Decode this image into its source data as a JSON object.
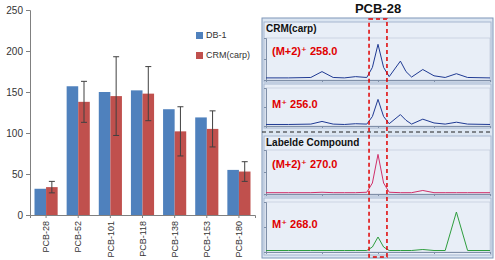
{
  "chart_data": [
    {
      "type": "bar",
      "categories": [
        "PCB-28",
        "PCB-52",
        "PCB-101",
        "PCB-118",
        "PCB-138",
        "PCB-153",
        "PCB-180"
      ],
      "series": [
        {
          "name": "DB-1",
          "color": "#4f81bd",
          "values": [
            32,
            157,
            150,
            152,
            129,
            119,
            55
          ]
        },
        {
          "name": "CRM(carp)",
          "color": "#c0504d",
          "values": [
            34,
            138,
            145,
            148,
            102,
            105,
            53
          ],
          "errors": [
            7,
            25,
            48,
            33,
            30,
            22,
            12
          ]
        }
      ],
      "ylim": [
        0,
        250
      ],
      "yticks": [
        0,
        50,
        100,
        150,
        200,
        250
      ],
      "grid": false,
      "legend": "upper right"
    },
    {
      "type": "line",
      "title": "(M+2)⁺ 258.0",
      "annotations": [
        "PCB-28",
        "CRM(carp)"
      ],
      "x": [
        26.0,
        26.2,
        26.4,
        26.5,
        26.6,
        26.7,
        26.8,
        26.9,
        26.95,
        27.0,
        27.05,
        27.1,
        27.2,
        27.25,
        27.3,
        27.4,
        27.5,
        27.6,
        27.7,
        27.8,
        28.0
      ],
      "series": [
        {
          "color": "#1f3a93",
          "values": [
            5,
            5,
            6,
            20,
            6,
            5,
            8,
            6,
            30,
            85,
            30,
            8,
            45,
            20,
            7,
            25,
            10,
            6,
            15,
            6,
            5
          ]
        }
      ],
      "xlim": [
        26.0,
        28.0
      ],
      "xticks": [
        26.0,
        26.5,
        27.0,
        27.5,
        28.0
      ],
      "ylim": [
        0,
        100
      ],
      "yticks": [
        0,
        50,
        100
      ],
      "tick_labels": false
    },
    {
      "type": "line",
      "title": "M⁺ 256.0",
      "x": [
        26.0,
        26.2,
        26.4,
        26.5,
        26.6,
        26.7,
        26.8,
        26.9,
        26.95,
        27.0,
        27.05,
        27.1,
        27.2,
        27.25,
        27.3,
        27.4,
        27.5,
        27.6,
        27.7,
        27.8,
        28.0
      ],
      "series": [
        {
          "color": "#1f3a93",
          "values": [
            4,
            4,
            5,
            12,
            5,
            4,
            6,
            5,
            25,
            70,
            25,
            6,
            30,
            15,
            5,
            18,
            8,
            5,
            10,
            5,
            4
          ]
        }
      ],
      "xlim": [
        26.0,
        28.0
      ],
      "xticks": [
        26.0,
        26.5,
        27.0,
        27.5,
        28.0
      ],
      "ylim": [
        0,
        100
      ],
      "yticks": [
        0,
        50,
        100
      ],
      "tick_labels": false
    },
    {
      "type": "line",
      "title": "(M+2)⁺ 270.0",
      "annotations": [
        "Labelde Compound"
      ],
      "x": [
        26.0,
        26.2,
        26.4,
        26.5,
        26.6,
        26.7,
        26.8,
        26.9,
        26.95,
        27.0,
        27.05,
        27.1,
        27.2,
        27.25,
        27.3,
        27.4,
        27.5,
        27.6,
        27.7,
        27.8,
        28.0
      ],
      "series": [
        {
          "color": "#d0306a",
          "values": [
            3,
            3,
            3,
            4,
            3,
            3,
            3,
            4,
            25,
            90,
            25,
            4,
            3,
            3,
            3,
            8,
            3,
            3,
            3,
            3,
            3
          ]
        }
      ],
      "xlim": [
        26.0,
        28.0
      ],
      "xticks": [
        26.0,
        26.5,
        27.0,
        27.5,
        28.0
      ],
      "ylim": [
        0,
        100
      ],
      "yticks": [
        0,
        50,
        100
      ],
      "tick_labels": false
    },
    {
      "type": "line",
      "title": "M⁺ 268.0",
      "x": [
        26.0,
        26.2,
        26.4,
        26.5,
        26.6,
        26.7,
        26.8,
        26.9,
        26.95,
        27.0,
        27.05,
        27.1,
        27.2,
        27.25,
        27.3,
        27.4,
        27.5,
        27.6,
        27.7,
        27.8,
        28.0
      ],
      "series": [
        {
          "color": "#2e9e3e",
          "values": [
            3,
            3,
            3,
            3,
            3,
            3,
            3,
            3,
            10,
            30,
            10,
            3,
            3,
            3,
            3,
            5,
            3,
            3,
            80,
            3,
            3
          ]
        }
      ],
      "xlim": [
        26.0,
        28.0
      ],
      "xticks": [
        26.0,
        26.5,
        27.0,
        27.5,
        28.0
      ],
      "ylim": [
        0,
        100
      ],
      "yticks": [
        0,
        50,
        100
      ],
      "tick_labels": false
    }
  ]
}
